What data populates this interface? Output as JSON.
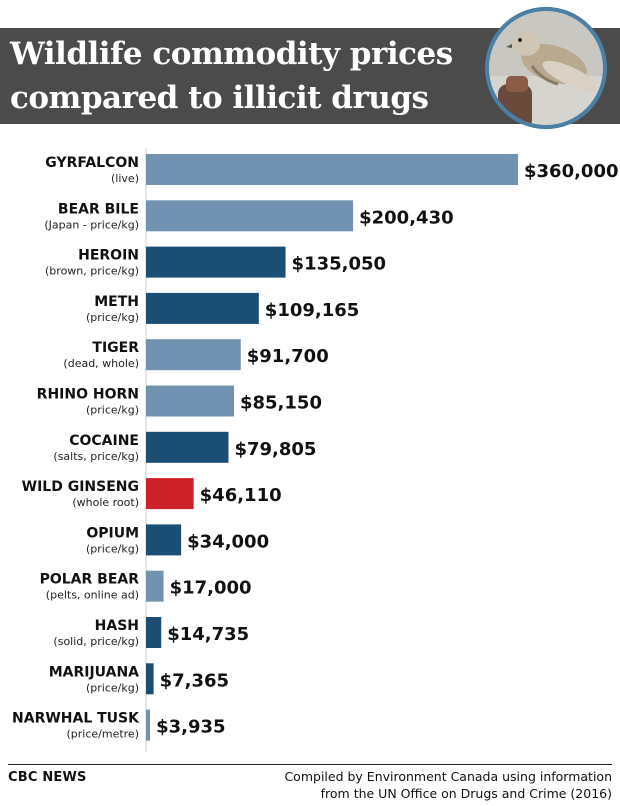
{
  "title_line1": "Wildlife commodity prices",
  "title_line2": "compared to illicit drugs",
  "footer": {
    "brand": "CBC NEWS",
    "source_line1": "Compiled by Environment Canada using information",
    "source_line2": "from the UN Office on Drugs and Crime (2016)"
  },
  "colors": {
    "wildlife": "#7193b1",
    "drug": "#1b4e75",
    "highlight": "#cc2127",
    "header_bg": "#4b4b4b"
  },
  "chart_data": {
    "type": "bar",
    "orientation": "horizontal",
    "categories": [
      "GYRFALCON",
      "BEAR BILE",
      "HEROIN",
      "METH",
      "TIGER",
      "RHINO HORN",
      "COCAINE",
      "WILD GINSENG",
      "OPIUM",
      "POLAR BEAR",
      "HASH",
      "MARIJUANA",
      "NARWHAL TUSK"
    ],
    "sublabels": [
      "(live)",
      "(Japan - price/kg)",
      "(brown, price/kg)",
      "(price/kg)",
      "(dead, whole)",
      "(price/kg)",
      "(salts, price/kg)",
      "(whole root)",
      "(price/kg)",
      "(pelts, online ad)",
      "(solid, price/kg)",
      "(price/kg)",
      "(price/metre)"
    ],
    "values": [
      360000,
      200430,
      135050,
      109165,
      91700,
      85150,
      79805,
      46110,
      34000,
      17000,
      14735,
      7365,
      3935
    ],
    "value_labels": [
      "$360,000",
      "$200,430",
      "$135,050",
      "$109,165",
      "$91,700",
      "$85,150",
      "$79,805",
      "$46,110",
      "$34,000",
      "$17,000",
      "$14,735",
      "$7,365",
      "$3,935"
    ],
    "kinds": [
      "wildlife",
      "wildlife",
      "drug",
      "drug",
      "wildlife",
      "wildlife",
      "drug",
      "highlight",
      "drug",
      "wildlife",
      "drug",
      "drug",
      "wildlife"
    ],
    "xlim": [
      0,
      360000
    ],
    "grid": false,
    "legend": "none"
  }
}
